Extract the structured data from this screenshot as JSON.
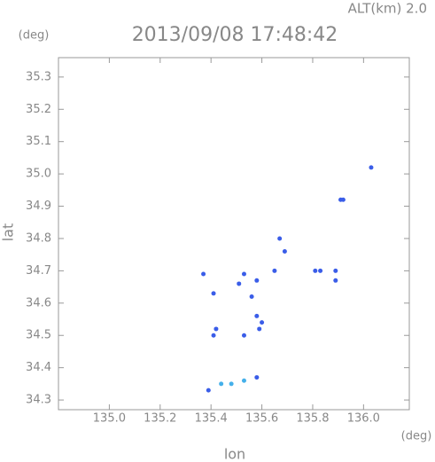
{
  "chart_data": {
    "type": "scatter",
    "title": "2013/09/08 17:48:42",
    "annotation": "ALT(km) 2.0",
    "y_unit": "(deg)",
    "x_unit": "(deg)",
    "xlabel": "lon",
    "ylabel": "lat",
    "x": [
      136.03,
      135.91,
      135.92,
      135.67,
      135.69,
      135.81,
      135.83,
      135.89,
      135.89,
      135.37,
      135.41,
      135.53,
      135.51,
      135.58,
      135.65,
      135.56,
      135.58,
      135.59,
      135.6,
      135.42,
      135.41,
      135.53,
      135.44,
      135.48,
      135.53,
      135.58,
      135.39
    ],
    "values": [
      35.02,
      34.92,
      34.92,
      34.8,
      34.76,
      34.7,
      34.7,
      34.7,
      34.67,
      34.69,
      34.63,
      34.69,
      34.66,
      34.67,
      34.7,
      34.62,
      34.56,
      34.52,
      34.54,
      34.52,
      34.5,
      34.5,
      34.35,
      34.35,
      34.36,
      34.37,
      34.33
    ],
    "colors": [
      "#3a5de8",
      "#3a5de8",
      "#3a5de8",
      "#3a5de8",
      "#3a5de8",
      "#3a5de8",
      "#3a5de8",
      "#3a5de8",
      "#3a5de8",
      "#3a5de8",
      "#3a5de8",
      "#3a5de8",
      "#3a5de8",
      "#3a5de8",
      "#3a5de8",
      "#3a5de8",
      "#3a5de8",
      "#3a5de8",
      "#3a5de8",
      "#3a5de8",
      "#3a5de8",
      "#3a5de8",
      "#45b0ea",
      "#45b0ea",
      "#45b0ea",
      "#3a5de8",
      "#3a5de8"
    ],
    "xlim": [
      134.8,
      136.18
    ],
    "ylim": [
      34.27,
      35.36
    ],
    "xticks": [
      {
        "value": 135.0,
        "label": "135.0"
      },
      135.2,
      135.4,
      135.6,
      135.8,
      {
        "value": 136.0,
        "label": "136.0"
      }
    ],
    "yticks": [
      34.3,
      34.4,
      34.5,
      34.6,
      34.7,
      34.8,
      34.9,
      {
        "value": 35.0,
        "label": "35.0"
      },
      35.1,
      35.2,
      35.3
    ],
    "grid": false
  }
}
